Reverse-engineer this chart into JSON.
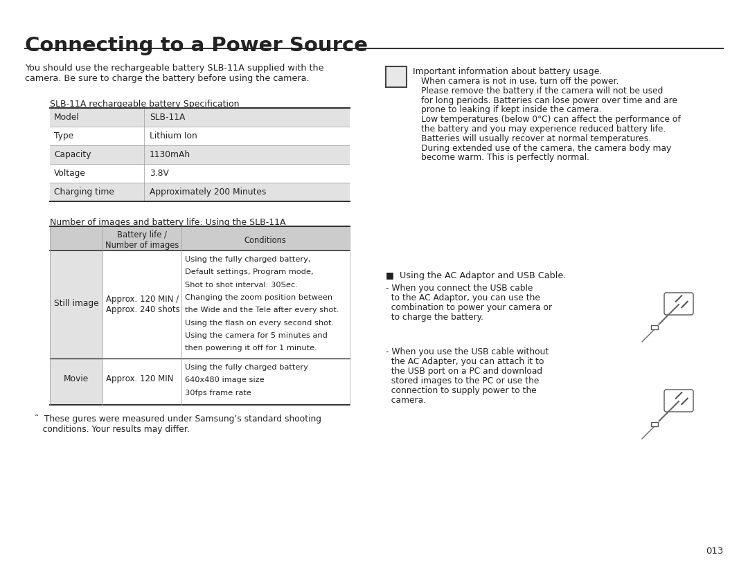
{
  "title": "Connecting to a Power Source",
  "bg_color": "#ffffff",
  "intro_text_l1": "You should use the rechargeable battery SLB-11A supplied with the",
  "intro_text_l2": "camera. Be sure to charge the battery before using the camera.",
  "spec_table_title": "SLB-11A rechargeable battery Specification",
  "spec_rows": [
    [
      "Model",
      "SLB-11A"
    ],
    [
      "Type",
      "Lithium Ion"
    ],
    [
      "Capacity",
      "1130mAh"
    ],
    [
      "Voltage",
      "3.8V"
    ],
    [
      "Charging time",
      "Approximately 200 Minutes"
    ]
  ],
  "battery_table_title": "Number of images and battery life: Using the SLB-11A",
  "battery_header_col1": "Battery life /\nNumber of images",
  "battery_header_col2": "Conditions",
  "still_col0": "Still image",
  "still_col1_l1": "Approx. 120 MIN /",
  "still_col1_l2": "Approx. 240 shots",
  "still_col2": [
    "Using the fully charged battery,",
    "Default settings, Program mode,",
    "Shot to shot interval: 30Sec.",
    "Changing the zoom position between",
    "the Wide and the Tele after every shot.",
    "Using the flash on every second shot.",
    "Using the camera for 5 minutes and",
    "then powering it off for 1 minute."
  ],
  "movie_col0": "Movie",
  "movie_col1": "Approx. 120 MIN",
  "movie_col2": [
    "Using the fully charged battery",
    "640x480 image size",
    "30fps frame rate"
  ],
  "footnote_l1": "˜  These gures were measured under Samsung’s standard shooting",
  "footnote_l2": "   conditions. Your results may differ.",
  "note_line0": "Important information about battery usage.",
  "note_lines": [
    "When camera is not in use, turn off the power.",
    "Please remove the battery if the camera will not be used",
    "for long periods. Batteries can lose power over time and are",
    "prone to leaking if kept inside the camera.",
    "Low temperatures (below 0°C) can affect the performance of",
    "the battery and you may experience reduced battery life.",
    "Batteries will usually recover at normal temperatures.",
    "During extended use of the camera, the camera body may",
    "become warm. This is perfectly normal."
  ],
  "ac_title": "■  Using the AC Adaptor and USB Cable.",
  "ac_text1": [
    "- When you connect the USB cable",
    "  to the AC Adaptor, you can use the",
    "  combination to power your camera or",
    "  to charge the battery."
  ],
  "ac_text2": [
    "- When you use the USB cable without",
    "  the AC Adapter, you can attach it to",
    "  the USB port on a PC and download",
    "  stored images to the PC or use the",
    "  connection to supply power to the",
    "  camera."
  ],
  "page_number": "013",
  "hdr_bg": "#cccccc",
  "row_alt_bg": "#e2e2e2",
  "row_bg": "#ffffff",
  "border_dark": "#333333",
  "border_light": "#999999"
}
